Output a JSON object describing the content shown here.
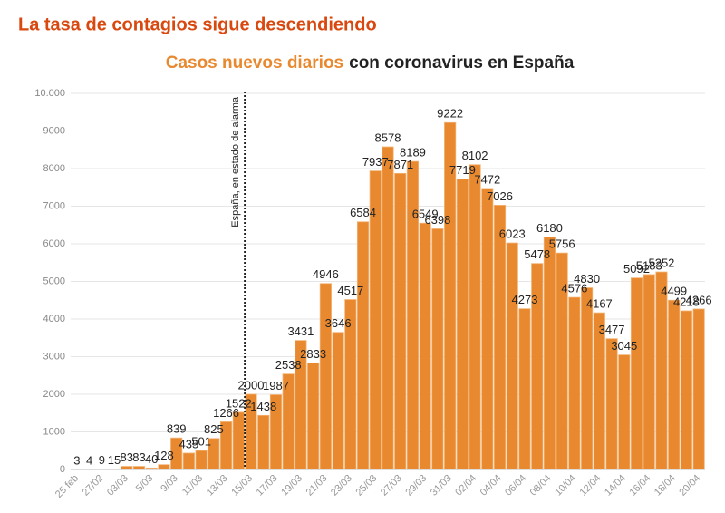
{
  "header": "La tasa de contagios sigue descendiendo",
  "chart_data": {
    "type": "bar",
    "title_highlight": "Casos nuevos diarios",
    "title_rest": "con coronavirus en España",
    "annotation": "España, en estado de alarma",
    "categories": [
      "25 feb",
      null,
      "27/02",
      null,
      "03/03",
      null,
      "5/03",
      null,
      "9/03",
      null,
      "11/03",
      null,
      "13/03",
      null,
      "15/03",
      null,
      "17/03",
      null,
      "19/03",
      null,
      "21/03",
      null,
      "23/03",
      null,
      "25/03",
      null,
      "27/03",
      null,
      "29/03",
      null,
      "31/03",
      null,
      "02/04",
      null,
      "04/04",
      null,
      "06/04",
      null,
      "08/04",
      null,
      "10/04",
      null,
      "12/04",
      null,
      "14/04",
      null,
      "16/04",
      null,
      "18/04",
      null,
      "20/04"
    ],
    "values": [
      3,
      4,
      9,
      15,
      83,
      83,
      40,
      128,
      839,
      435,
      501,
      825,
      1266,
      1522,
      2000,
      1438,
      1987,
      2538,
      3431,
      2833,
      4946,
      3646,
      4517,
      6584,
      7937,
      8578,
      7871,
      8189,
      6549,
      6398,
      9222,
      7719,
      8102,
      7472,
      7026,
      6023,
      4273,
      5478,
      6180,
      5756,
      4576,
      4830,
      4167,
      3477,
      3045,
      5092,
      5183,
      5252,
      4499,
      4218,
      4266
    ],
    "color": "#e8892f",
    "ylim": [
      0,
      10000
    ],
    "yticks": [
      0,
      1000,
      2000,
      3000,
      4000,
      5000,
      6000,
      7000,
      8000,
      9000,
      {
        "value": 10000,
        "label": "10.000"
      }
    ],
    "grid": true
  }
}
